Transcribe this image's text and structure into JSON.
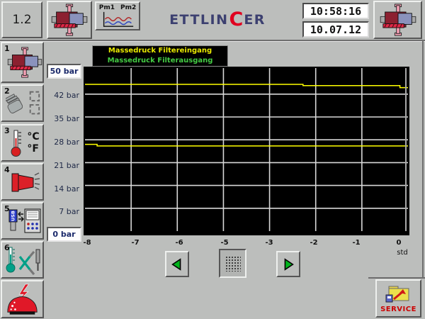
{
  "app": {
    "screen_id": "1.2",
    "clock": {
      "time": "10:58:16",
      "date": "10.07.12"
    },
    "logo": {
      "part1": "ETTLIN",
      "accent": "C",
      "part2": "ER"
    },
    "pm_button": {
      "label1": "Pm1",
      "label2": "Pm2"
    }
  },
  "sidebar": {
    "items": [
      {
        "number": "1",
        "icon": "filter-machine-icon"
      },
      {
        "number": "2",
        "icon": "glove-recycle-icon"
      },
      {
        "number": "3",
        "icon": "temperature-icon",
        "labels": {
          "c": "°C",
          "f": "°F"
        }
      },
      {
        "number": "4",
        "icon": "spray-nozzle-icon"
      },
      {
        "number": "5",
        "icon": "usb-transfer-icon",
        "label": "USB"
      },
      {
        "number": "6",
        "icon": "tools-icon"
      },
      {
        "number": "",
        "icon": "alarm-icon"
      }
    ]
  },
  "legend": {
    "entries": [
      {
        "label": "Massedruck Filtereingang",
        "color": "#e8e800"
      },
      {
        "label": "Massedruck Filterausgang",
        "color": "#44cc44"
      }
    ]
  },
  "axis": {
    "y_top_field": "50 bar",
    "y_labels": [
      "42 bar",
      "35 bar",
      "28 bar",
      "21 bar",
      "14 bar",
      "7 bar"
    ],
    "y_bottom_field": "0 bar",
    "x_labels": [
      "-8",
      "-7",
      "-6",
      "-5",
      "-3",
      "-2",
      "-1",
      "0"
    ],
    "x_unit": "std"
  },
  "chart_data": {
    "type": "line",
    "title": "Massedruck Filtereingang / Filterausgang",
    "xlabel": "std",
    "ylabel": "bar",
    "xlim": [
      -8,
      0
    ],
    "ylim": [
      0,
      50
    ],
    "x_divisions": 7,
    "x_tick_labels": [
      "-8",
      "-7",
      "-6",
      "-5",
      "-3",
      "-2",
      "-1",
      "0"
    ],
    "y_tick_labels": [
      "0 bar",
      "7 bar",
      "14 bar",
      "21 bar",
      "28 bar",
      "35 bar",
      "42 bar",
      "50 bar"
    ],
    "y_gridline_values": [
      7,
      14,
      21,
      28,
      35,
      42
    ],
    "grid": true,
    "plot_bg": "#000000",
    "grid_color": "#d8d8d8",
    "legend_position": "top",
    "series": [
      {
        "name": "Massedruck Filtereingang",
        "color": "#ffff00",
        "points": [
          [
            -8,
            45.0
          ],
          [
            -2.6,
            45.0
          ],
          [
            -2.6,
            44.6
          ],
          [
            -0.2,
            44.6
          ],
          [
            -0.2,
            44.0
          ],
          [
            0,
            44.0
          ]
        ]
      },
      {
        "name": "Massedruck Filterausgang",
        "color": "#ffff00",
        "points": [
          [
            -8,
            26.6
          ],
          [
            -7.7,
            26.6
          ],
          [
            -7.7,
            26.1
          ],
          [
            0,
            26.1
          ]
        ]
      }
    ],
    "cursor": {
      "x": 0,
      "color": "#a8a8a8"
    }
  },
  "icons": {
    "top_left": "filter-machine-icon",
    "pm_chart": "pm-curves-icon",
    "top_right": "filter-machine-icon",
    "scroll_left": "green-left-arrow-icon",
    "grid_toggle": "dot-grid-icon",
    "scroll_right": "green-right-arrow-icon",
    "service": "folder-export-icon"
  },
  "service": {
    "label": "SERVICE"
  }
}
